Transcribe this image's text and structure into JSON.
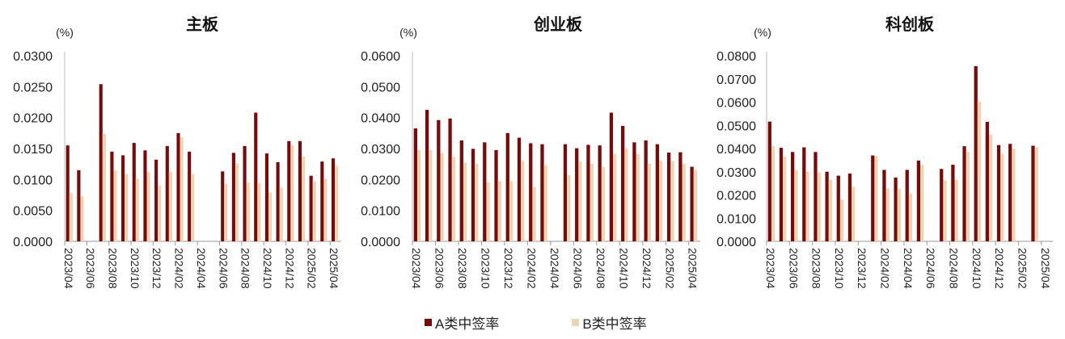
{
  "colors": {
    "A": "#7a0a0a",
    "B": "#ecd5b3"
  },
  "legend": [
    "A类中签率",
    "B类中签率"
  ],
  "chart_data": [
    {
      "type": "bar",
      "title": "主板",
      "ylabel": "(%)",
      "ylim": [
        0,
        0.03
      ],
      "yticks": [
        "0.0000",
        "0.0050",
        "0.0100",
        "0.0150",
        "0.0200",
        "0.0250",
        "0.0300"
      ],
      "xtick_labels": [
        "2023/04",
        "2023/06",
        "2023/08",
        "2023/10",
        "2023/12",
        "2024/02",
        "2024/04",
        "2024/06",
        "2024/08",
        "2024/10",
        "2024/12",
        "2025/02",
        "2025/04"
      ],
      "categories": [
        "2023/04",
        "2023/05",
        "2023/06",
        "2023/07",
        "2023/08",
        "2023/09",
        "2023/10",
        "2023/11",
        "2023/12",
        "2024/01",
        "2024/02",
        "2024/03",
        "2024/04",
        "2024/05",
        "2024/06",
        "2024/07",
        "2024/08",
        "2024/09",
        "2024/10",
        "2024/11",
        "2024/12",
        "2025/01",
        "2025/02",
        "2025/03",
        "2025/04"
      ],
      "series": [
        {
          "name": "A类中签率",
          "values": [
            0.0155,
            0.0115,
            null,
            0.0254,
            0.0145,
            0.0139,
            0.0159,
            0.0147,
            0.0132,
            0.0154,
            0.0175,
            0.0145,
            null,
            null,
            0.0113,
            0.0143,
            0.0154,
            0.0208,
            0.0142,
            0.0128,
            0.0162,
            0.0162,
            0.0106,
            0.0129,
            0.0134
          ]
        },
        {
          "name": "B类中签率",
          "values": [
            0.0078,
            0.0073,
            null,
            0.0174,
            0.0115,
            0.0109,
            0.0101,
            0.0112,
            0.009,
            0.0112,
            0.0168,
            0.0109,
            null,
            null,
            0.0093,
            0.0126,
            0.0095,
            0.0094,
            0.0079,
            0.0087,
            0.0155,
            0.0137,
            0.0097,
            0.0101,
            0.0122
          ]
        }
      ]
    },
    {
      "type": "bar",
      "title": "创业板",
      "ylabel": "(%)",
      "ylim": [
        0,
        0.06
      ],
      "yticks": [
        "0.0000",
        "0.0100",
        "0.0200",
        "0.0300",
        "0.0400",
        "0.0500",
        "0.0600"
      ],
      "xtick_labels": [
        "2023/04",
        "2023/06",
        "2023/08",
        "2023/10",
        "2023/12",
        "2024/02",
        "2024/04",
        "2024/06",
        "2024/08",
        "2024/10",
        "2024/12",
        "2025/02",
        "2025/04"
      ],
      "categories": [
        "2023/04",
        "2023/05",
        "2023/06",
        "2023/07",
        "2023/08",
        "2023/09",
        "2023/10",
        "2023/11",
        "2023/12",
        "2024/01",
        "2024/02",
        "2024/03",
        "2024/04",
        "2024/05",
        "2024/06",
        "2024/07",
        "2024/08",
        "2024/09",
        "2024/10",
        "2024/11",
        "2024/12",
        "2025/01",
        "2025/02",
        "2025/03",
        "2025/04"
      ],
      "series": [
        {
          "name": "A类中签率",
          "values": [
            0.0365,
            0.0425,
            0.0392,
            0.0397,
            0.0326,
            0.0299,
            0.032,
            0.0295,
            0.035,
            0.0335,
            0.0317,
            0.0314,
            null,
            0.0314,
            0.0301,
            0.0312,
            0.031,
            0.0416,
            0.0373,
            0.032,
            0.0326,
            0.0314,
            0.0287,
            0.0288,
            0.0241
          ]
        },
        {
          "name": "B类中签率",
          "values": [
            0.0295,
            0.0295,
            0.0285,
            0.0273,
            0.0254,
            0.0251,
            0.019,
            0.0195,
            0.0195,
            0.026,
            0.0175,
            0.0246,
            null,
            0.0214,
            0.0258,
            0.0251,
            0.024,
            0.0283,
            0.0301,
            0.0282,
            0.0251,
            0.026,
            0.026,
            0.0251,
            0.0231
          ]
        }
      ]
    },
    {
      "type": "bar",
      "title": "科创板",
      "ylabel": "(%)",
      "ylim": [
        0,
        0.08
      ],
      "yticks": [
        "0.0000",
        "0.0100",
        "0.0200",
        "0.0300",
        "0.0400",
        "0.0500",
        "0.0600",
        "0.0700",
        "0.0800"
      ],
      "xtick_labels": [
        "2023/04",
        "2023/06",
        "2023/08",
        "2023/10",
        "2023/12",
        "2024/02",
        "2024/04",
        "2024/06",
        "2024/08",
        "2024/10",
        "2024/12",
        "2025/02",
        "2025/04"
      ],
      "categories": [
        "2023/04",
        "2023/05",
        "2023/06",
        "2023/07",
        "2023/08",
        "2023/09",
        "2023/10",
        "2023/11",
        "2023/12",
        "2024/01",
        "2024/02",
        "2024/03",
        "2024/04",
        "2024/05",
        "2024/06",
        "2024/07",
        "2024/08",
        "2024/09",
        "2024/10",
        "2024/11",
        "2024/12",
        "2025/01",
        "2025/02",
        "2025/03",
        "2025/04"
      ],
      "series": [
        {
          "name": "A类中签率",
          "values": [
            0.0516,
            0.0403,
            0.0385,
            0.0405,
            0.0385,
            0.03,
            0.0283,
            0.0292,
            null,
            0.037,
            0.0308,
            0.0275,
            0.0308,
            0.0348,
            null,
            0.0312,
            0.033,
            0.041,
            0.0755,
            0.0515,
            0.0415,
            0.042,
            null,
            0.0412,
            null
          ]
        },
        {
          "name": "B类中签率",
          "values": [
            0.041,
            0.0365,
            0.0308,
            0.03,
            0.0297,
            0.0265,
            0.018,
            0.0235,
            null,
            0.0367,
            0.0228,
            0.0226,
            0.0206,
            0.033,
            null,
            0.0263,
            0.0265,
            0.0385,
            0.0602,
            0.046,
            0.0378,
            0.04,
            null,
            0.0405,
            null
          ]
        }
      ]
    }
  ]
}
